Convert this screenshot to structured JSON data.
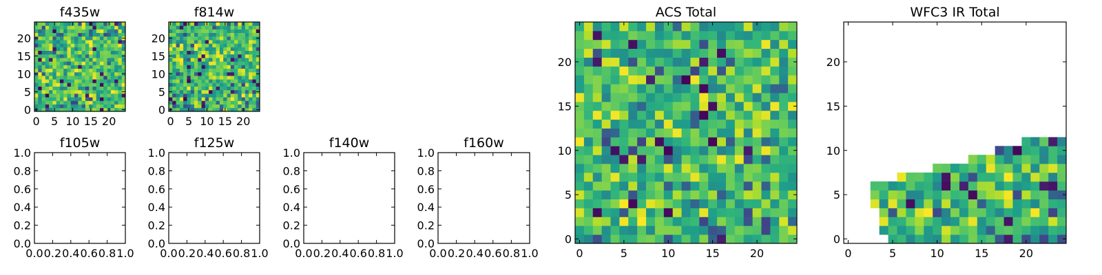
{
  "chart_data": [
    {
      "type": "heatmap",
      "title": "f435w",
      "colormap": "viridis",
      "grid_size": 25,
      "xlim": [
        -0.5,
        24.5
      ],
      "ylim": [
        -0.5,
        24.5
      ],
      "xticks": [
        0,
        5,
        10,
        15,
        20
      ],
      "yticks": [
        0,
        5,
        10,
        15,
        20
      ],
      "fill": "random-full",
      "xtick_labels": [
        "0",
        "5",
        "10",
        "15",
        "20"
      ],
      "ytick_labels": [
        "0",
        "5",
        "10",
        "15",
        "20"
      ],
      "seed": 11
    },
    {
      "type": "heatmap",
      "title": "f814w",
      "colormap": "viridis",
      "grid_size": 25,
      "xlim": [
        -0.5,
        24.5
      ],
      "ylim": [
        -0.5,
        24.5
      ],
      "xticks": [
        0,
        5,
        10,
        15,
        20
      ],
      "yticks": [
        0,
        5,
        10,
        15,
        20
      ],
      "fill": "random-full",
      "xtick_labels": [
        "0",
        "5",
        "10",
        "15",
        "20"
      ],
      "ytick_labels": [
        "0",
        "5",
        "10",
        "15",
        "20"
      ],
      "seed": 23
    },
    {
      "type": "heatmap",
      "title": "f105w",
      "empty": true,
      "xlim": [
        0,
        1
      ],
      "ylim": [
        0,
        1
      ],
      "xtick_labels": [
        "0.0",
        "0.2",
        "0.4",
        "0.6",
        "0.8",
        "1.0"
      ],
      "ytick_labels": [
        "0.0",
        "0.2",
        "0.4",
        "0.6",
        "0.8",
        "1.0"
      ]
    },
    {
      "type": "heatmap",
      "title": "f125w",
      "empty": true,
      "xlim": [
        0,
        1
      ],
      "ylim": [
        0,
        1
      ],
      "xtick_labels": [
        "0.0",
        "0.2",
        "0.4",
        "0.6",
        "0.8",
        "1.0"
      ],
      "ytick_labels": [
        "0.0",
        "0.2",
        "0.4",
        "0.6",
        "0.8",
        "1.0"
      ]
    },
    {
      "type": "heatmap",
      "title": "f140w",
      "empty": true,
      "xlim": [
        0,
        1
      ],
      "ylim": [
        0,
        1
      ],
      "xtick_labels": [
        "0.0",
        "0.2",
        "0.4",
        "0.6",
        "0.8",
        "1.0"
      ],
      "ytick_labels": [
        "0.0",
        "0.2",
        "0.4",
        "0.6",
        "0.8",
        "1.0"
      ]
    },
    {
      "type": "heatmap",
      "title": "f160w",
      "empty": true,
      "xlim": [
        0,
        1
      ],
      "ylim": [
        0,
        1
      ],
      "xtick_labels": [
        "0.0",
        "0.2",
        "0.4",
        "0.6",
        "0.8",
        "1.0"
      ],
      "ytick_labels": [
        "0.0",
        "0.2",
        "0.4",
        "0.6",
        "0.8",
        "1.0"
      ]
    },
    {
      "type": "heatmap",
      "title": "ACS Total",
      "colormap": "viridis",
      "grid_size": 25,
      "xlim": [
        -0.5,
        24.5
      ],
      "ylim": [
        -0.5,
        24.5
      ],
      "xticks": [
        0,
        5,
        10,
        15,
        20
      ],
      "yticks": [
        0,
        5,
        10,
        15,
        20
      ],
      "fill": "random-full",
      "xtick_labels": [
        "0",
        "5",
        "10",
        "15",
        "20"
      ],
      "ytick_labels": [
        "0",
        "5",
        "10",
        "15",
        "20"
      ],
      "seed": 37
    },
    {
      "type": "heatmap",
      "title": "WFC3 IR Total",
      "colormap": "viridis",
      "grid_size": 25,
      "xlim": [
        -0.5,
        24.5
      ],
      "ylim": [
        -0.5,
        24.5
      ],
      "xticks": [
        0,
        5,
        10,
        15,
        20
      ],
      "yticks": [
        0,
        5,
        10,
        15,
        20
      ],
      "fill": "random-staircase",
      "coverage_rows": [
        {
          "y": 0,
          "x_start": 5,
          "x_end": 24
        },
        {
          "y": 1,
          "x_start": 4,
          "x_end": 24
        },
        {
          "y": 2,
          "x_start": 4,
          "x_end": 24
        },
        {
          "y": 3,
          "x_start": 4,
          "x_end": 24
        },
        {
          "y": 4,
          "x_start": 3,
          "x_end": 24
        },
        {
          "y": 5,
          "x_start": 3,
          "x_end": 24
        },
        {
          "y": 6,
          "x_start": 3,
          "x_end": 24
        },
        {
          "y": 7,
          "x_start": 6,
          "x_end": 24
        },
        {
          "y": 8,
          "x_start": 10,
          "x_end": 24
        },
        {
          "y": 9,
          "x_start": 14,
          "x_end": 24
        },
        {
          "y": 10,
          "x_start": 17,
          "x_end": 24
        },
        {
          "y": 11,
          "x_start": 20,
          "x_end": 24
        }
      ],
      "xtick_labels": [
        "0",
        "5",
        "10",
        "15",
        "20"
      ],
      "ytick_labels": [
        "0",
        "5",
        "10",
        "15",
        "20"
      ],
      "seed": 53
    }
  ]
}
